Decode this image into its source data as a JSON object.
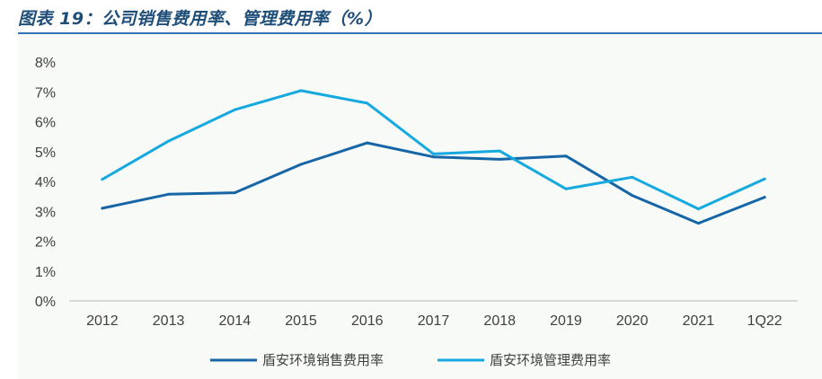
{
  "figure": {
    "title": "图表 19：公司销售费用率、管理费用率（%）"
  },
  "chart_data": {
    "type": "line",
    "categories": [
      "2012",
      "2013",
      "2014",
      "2015",
      "2016",
      "2017",
      "2018",
      "2019",
      "2020",
      "2021",
      "1Q22"
    ],
    "series": [
      {
        "name": "盾安环境销售费用率",
        "color": "#1565a7",
        "values": [
          3.1,
          3.57,
          3.62,
          4.57,
          5.29,
          4.82,
          4.74,
          4.85,
          3.53,
          2.6,
          3.47
        ]
      },
      {
        "name": "盾安环境管理费用率",
        "color": "#16a9e0",
        "values": [
          4.07,
          5.35,
          6.4,
          7.04,
          6.62,
          4.92,
          5.02,
          3.75,
          4.14,
          3.08,
          4.08
        ]
      }
    ],
    "ylim": [
      0,
      8
    ],
    "yticks": [
      0,
      1,
      2,
      3,
      4,
      5,
      6,
      7,
      8
    ],
    "ytick_labels": [
      "0%",
      "1%",
      "2%",
      "3%",
      "4%",
      "5%",
      "6%",
      "7%",
      "8%"
    ],
    "grid": false,
    "legend_position": "bottom",
    "xlabel": "",
    "ylabel": ""
  }
}
